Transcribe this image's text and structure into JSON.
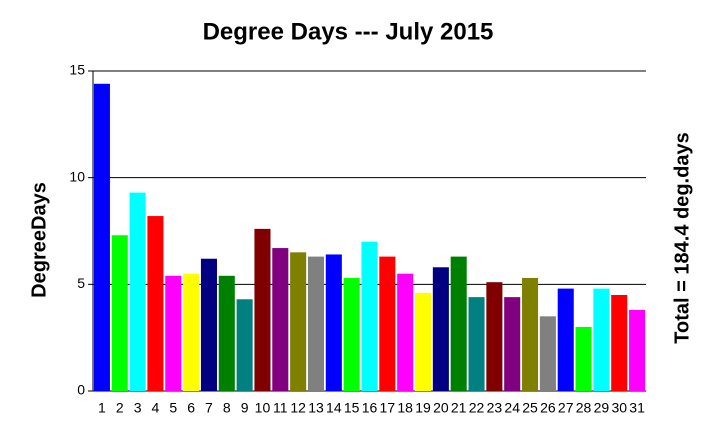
{
  "chart_data": {
    "type": "bar",
    "title": "Degree Days --- July 2015",
    "y_label": "DegreeDays",
    "right_label": "Total = 184.4 deg.days",
    "categories": [
      "1",
      "2",
      "3",
      "4",
      "5",
      "6",
      "7",
      "8",
      "9",
      "10",
      "11",
      "12",
      "13",
      "14",
      "15",
      "16",
      "17",
      "18",
      "19",
      "20",
      "21",
      "22",
      "23",
      "24",
      "25",
      "26",
      "27",
      "28",
      "29",
      "30",
      "31"
    ],
    "values": [
      14.4,
      7.3,
      9.3,
      8.2,
      5.4,
      5.5,
      6.2,
      5.4,
      4.3,
      7.6,
      6.7,
      6.5,
      6.3,
      6.4,
      5.3,
      7.0,
      6.3,
      5.5,
      4.6,
      5.8,
      6.3,
      4.4,
      5.1,
      4.4,
      5.3,
      3.5,
      4.8,
      3.0,
      4.8,
      4.5,
      3.8
    ],
    "colors": [
      "#0000ff",
      "#00ff00",
      "#00ffff",
      "#ff0000",
      "#ff00ff",
      "#ffff00",
      "#000080",
      "#008000",
      "#008080",
      "#800000",
      "#800080",
      "#808000",
      "#808080",
      "#0000ff",
      "#00ff00",
      "#00ffff",
      "#ff0000",
      "#ff00ff",
      "#ffff00",
      "#000080",
      "#008000",
      "#008080",
      "#800000",
      "#800080",
      "#808000",
      "#808080",
      "#0000ff",
      "#00ff00",
      "#00ffff",
      "#ff0000",
      "#ff00ff"
    ],
    "ylim": [
      0,
      15
    ],
    "yticks": [
      0,
      5,
      10,
      15
    ],
    "grid": true
  }
}
